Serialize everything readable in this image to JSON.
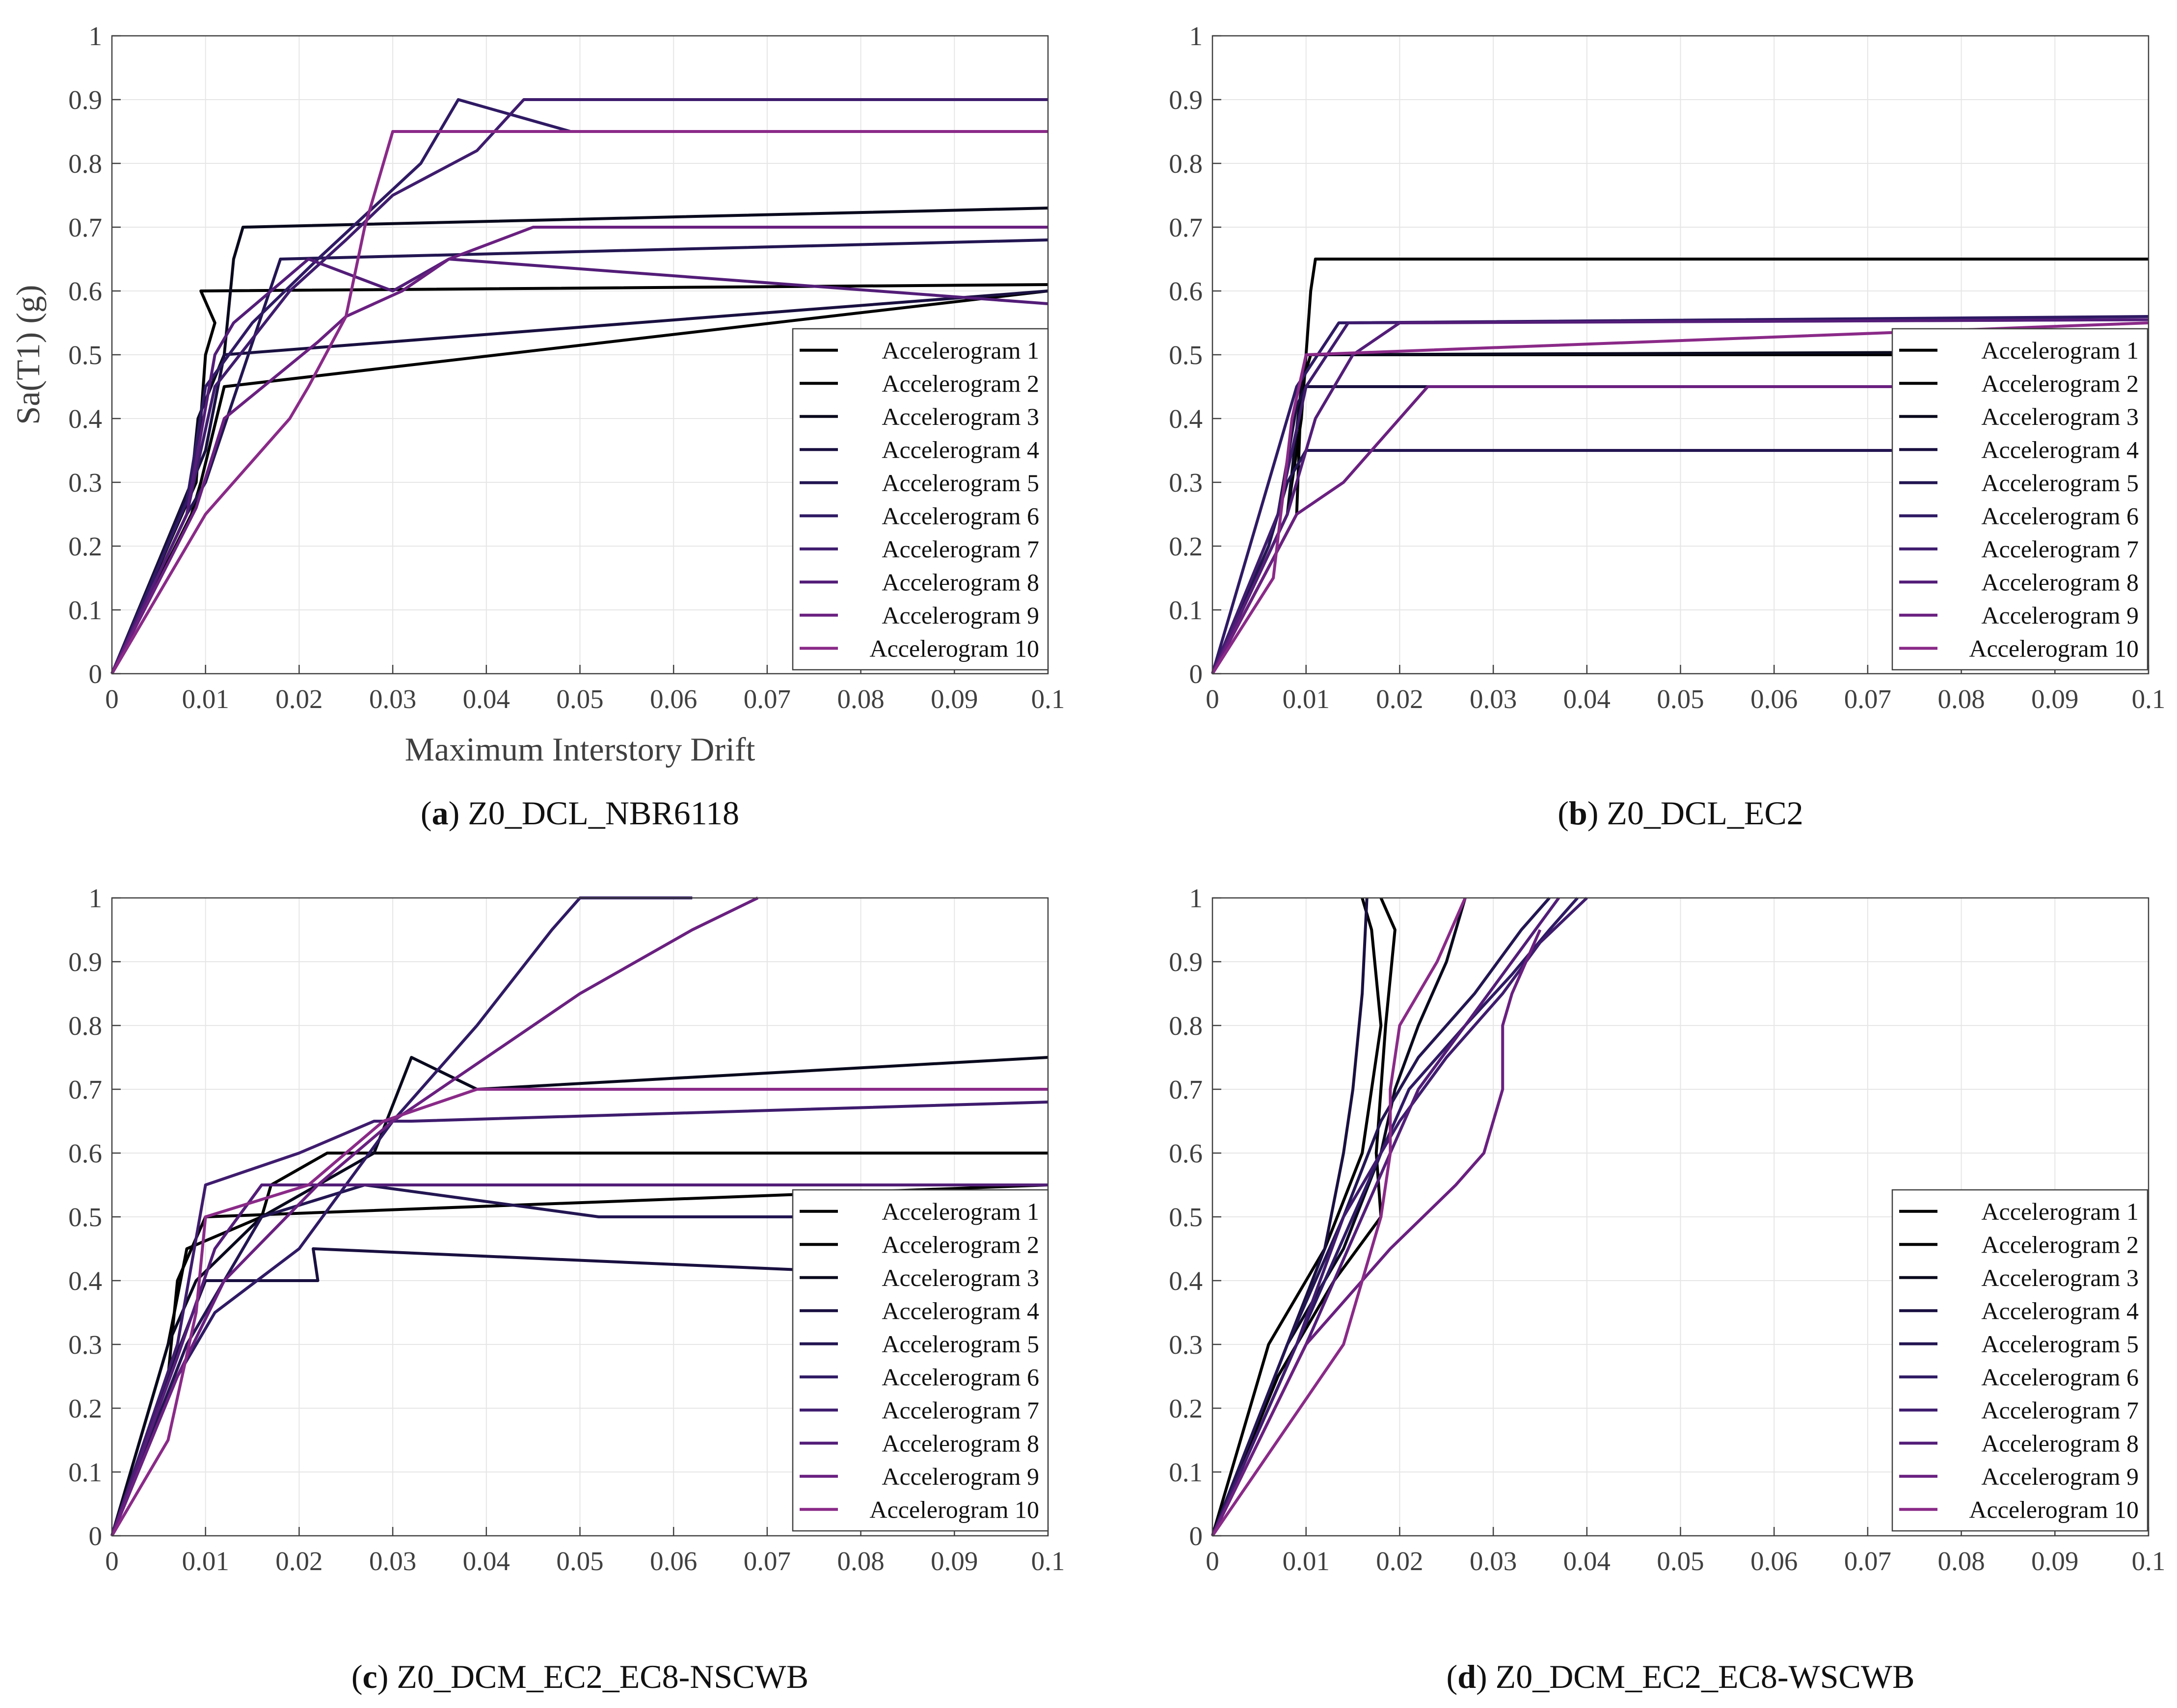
{
  "chart_data": [
    {
      "type": "line",
      "xlabel": "Maximum Interstory Drift",
      "ylabel": "Sa(T1) (g)",
      "xlim": [
        0,
        0.1
      ],
      "ylim": [
        0,
        1
      ],
      "xticks": [
        "0",
        "0.01",
        "0.02",
        "0.03",
        "0.04",
        "0.05",
        "0.06",
        "0.07",
        "0.08",
        "0.09",
        "0.1"
      ],
      "yticks": [
        "0",
        "0.1",
        "0.2",
        "0.3",
        "0.4",
        "0.5",
        "0.6",
        "0.7",
        "0.8",
        "0.9",
        "1"
      ],
      "grid": true,
      "legend_position": "bottom-right",
      "caption_letter": "a",
      "caption_text": "Z0_DCL_NBR6118",
      "series": [
        {
          "name": "Accelerogram 1",
          "color": "#000000",
          "x": [
            0,
            0.0085,
            0.0095,
            0.012,
            0.1
          ],
          "y": [
            0,
            0.25,
            0.3,
            0.45,
            0.6
          ]
        },
        {
          "name": "Accelerogram 2",
          "color": "#000000",
          "x": [
            0,
            0.009,
            0.01,
            0.011,
            0.0095,
            0.1
          ],
          "y": [
            0,
            0.3,
            0.5,
            0.55,
            0.6,
            0.61
          ]
        },
        {
          "name": "Accelerogram 3",
          "color": "#0a0a1e",
          "x": [
            0,
            0.0085,
            0.0092,
            0.012,
            0.013,
            0.014,
            0.1
          ],
          "y": [
            0,
            0.3,
            0.4,
            0.5,
            0.65,
            0.7,
            0.73
          ]
        },
        {
          "name": "Accelerogram 4",
          "color": "#1a1040",
          "x": [
            0,
            0.008,
            0.01,
            0.012,
            0.1
          ],
          "y": [
            0,
            0.28,
            0.35,
            0.5,
            0.6
          ]
        },
        {
          "name": "Accelerogram 5",
          "color": "#231652",
          "x": [
            0,
            0.008,
            0.01,
            0.018,
            0.1
          ],
          "y": [
            0,
            0.25,
            0.3,
            0.65,
            0.68
          ]
        },
        {
          "name": "Accelerogram 6",
          "color": "#2f1a64",
          "x": [
            0,
            0.008,
            0.01,
            0.015,
            0.022,
            0.033,
            0.037,
            0.049,
            0.1
          ],
          "y": [
            0,
            0.27,
            0.45,
            0.55,
            0.65,
            0.8,
            0.9,
            0.85,
            0.85
          ]
        },
        {
          "name": "Accelerogram 7",
          "color": "#3f1c6e",
          "x": [
            0,
            0.008,
            0.011,
            0.019,
            0.025,
            0.03,
            0.039,
            0.044,
            0.1
          ],
          "y": [
            0,
            0.25,
            0.45,
            0.6,
            0.68,
            0.75,
            0.82,
            0.9,
            0.9
          ]
        },
        {
          "name": "Accelerogram 8",
          "color": "#531d78",
          "x": [
            0,
            0.008,
            0.011,
            0.013,
            0.021,
            0.03,
            0.036,
            0.1
          ],
          "y": [
            0,
            0.25,
            0.5,
            0.55,
            0.65,
            0.6,
            0.65,
            0.58
          ]
        },
        {
          "name": "Accelerogram 9",
          "color": "#6a2080",
          "x": [
            0,
            0.009,
            0.012,
            0.022,
            0.025,
            0.031,
            0.036,
            0.045,
            0.1
          ],
          "y": [
            0,
            0.26,
            0.4,
            0.52,
            0.56,
            0.6,
            0.65,
            0.7,
            0.7
          ]
        },
        {
          "name": "Accelerogram 10",
          "color": "#8a2a88",
          "x": [
            0,
            0.01,
            0.019,
            0.021,
            0.025,
            0.027,
            0.03,
            0.1
          ],
          "y": [
            0,
            0.25,
            0.4,
            0.45,
            0.56,
            0.7,
            0.85,
            0.85
          ]
        }
      ]
    },
    {
      "type": "line",
      "xlabel": "",
      "ylabel": "",
      "xlim": [
        0,
        0.1
      ],
      "ylim": [
        0,
        1
      ],
      "xticks": [
        "0",
        "0.01",
        "0.02",
        "0.03",
        "0.04",
        "0.05",
        "0.06",
        "0.07",
        "0.08",
        "0.09",
        "0.1"
      ],
      "yticks": [
        "0",
        "0.1",
        "0.2",
        "0.3",
        "0.4",
        "0.5",
        "0.6",
        "0.7",
        "0.8",
        "0.9",
        "1"
      ],
      "grid": true,
      "legend_position": "right",
      "caption_letter": "b",
      "caption_text": "Z0_DCL_EC2",
      "series": [
        {
          "name": "Accelerogram 1",
          "color": "#000000",
          "x": [
            0,
            0.008,
            0.0095,
            0.0105,
            0.011,
            0.1
          ],
          "y": [
            0,
            0.25,
            0.4,
            0.6,
            0.65,
            0.65
          ]
        },
        {
          "name": "Accelerogram 2",
          "color": "#000000",
          "x": [
            0,
            0.009,
            0.0095,
            0.0105,
            0.1
          ],
          "y": [
            0,
            0.25,
            0.45,
            0.5,
            0.5
          ]
        },
        {
          "name": "Accelerogram 3",
          "color": "#0a0a1e",
          "x": [
            0,
            0.008,
            0.0095,
            0.01,
            0.1
          ],
          "y": [
            0,
            0.25,
            0.45,
            0.5,
            0.505
          ]
        },
        {
          "name": "Accelerogram 4",
          "color": "#1a1040",
          "x": [
            0,
            0.007,
            0.009,
            0.01,
            0.1
          ],
          "y": [
            0,
            0.25,
            0.42,
            0.45,
            0.45
          ]
        },
        {
          "name": "Accelerogram 5",
          "color": "#231652",
          "x": [
            0,
            0.006,
            0.008,
            0.01,
            0.1
          ],
          "y": [
            0,
            0.2,
            0.3,
            0.35,
            0.35
          ]
        },
        {
          "name": "Accelerogram 6",
          "color": "#2f1a64",
          "x": [
            0,
            0.006,
            0.009,
            0.0135,
            0.1
          ],
          "y": [
            0,
            0.3,
            0.45,
            0.55,
            0.56
          ]
        },
        {
          "name": "Accelerogram 7",
          "color": "#3f1c6e",
          "x": [
            0,
            0.007,
            0.01,
            0.0145,
            0.1
          ],
          "y": [
            0,
            0.25,
            0.45,
            0.55,
            0.555
          ]
        },
        {
          "name": "Accelerogram 8",
          "color": "#531d78",
          "x": [
            0,
            0.008,
            0.011,
            0.015,
            0.02,
            0.1
          ],
          "y": [
            0,
            0.25,
            0.4,
            0.5,
            0.55,
            0.555
          ]
        },
        {
          "name": "Accelerogram 9",
          "color": "#6a2080",
          "x": [
            0,
            0.009,
            0.014,
            0.02,
            0.023,
            0.1
          ],
          "y": [
            0,
            0.25,
            0.3,
            0.4,
            0.45,
            0.45
          ]
        },
        {
          "name": "Accelerogram 10",
          "color": "#8a2a88",
          "x": [
            0,
            0.0065,
            0.0085,
            0.01,
            0.1
          ],
          "y": [
            0,
            0.15,
            0.4,
            0.5,
            0.55
          ]
        }
      ]
    },
    {
      "type": "line",
      "xlabel": "",
      "ylabel": "",
      "xlim": [
        0,
        0.1
      ],
      "ylim": [
        0,
        1
      ],
      "xticks": [
        "0",
        "0.01",
        "0.02",
        "0.03",
        "0.04",
        "0.05",
        "0.06",
        "0.07",
        "0.08",
        "0.09",
        "0.1"
      ],
      "yticks": [
        "0",
        "0.1",
        "0.2",
        "0.3",
        "0.4",
        "0.5",
        "0.6",
        "0.7",
        "0.8",
        "0.9",
        "1"
      ],
      "grid": true,
      "legend_position": "bottom-right",
      "caption_letter": "c",
      "caption_text": "Z0_DCM_EC2_EC8-NSCWB",
      "series": [
        {
          "name": "Accelerogram 1",
          "color": "#000000",
          "x": [
            0,
            0.006,
            0.007,
            0.01,
            0.1
          ],
          "y": [
            0,
            0.25,
            0.4,
            0.5,
            0.55
          ]
        },
        {
          "name": "Accelerogram 2",
          "color": "#000000",
          "x": [
            0,
            0.006,
            0.008,
            0.016,
            0.017,
            0.023,
            0.029,
            0.1
          ],
          "y": [
            0,
            0.3,
            0.45,
            0.5,
            0.55,
            0.6,
            0.6,
            0.6
          ]
        },
        {
          "name": "Accelerogram 3",
          "color": "#0a0a1e",
          "x": [
            0,
            0.006,
            0.009,
            0.016,
            0.028,
            0.032,
            0.039,
            0.1
          ],
          "y": [
            0,
            0.3,
            0.4,
            0.5,
            0.6,
            0.75,
            0.7,
            0.75
          ]
        },
        {
          "name": "Accelerogram 4",
          "color": "#1a1040",
          "x": [
            0,
            0.006,
            0.01,
            0.022,
            0.0215,
            0.1
          ],
          "y": [
            0,
            0.25,
            0.4,
            0.4,
            0.45,
            0.4
          ]
        },
        {
          "name": "Accelerogram 5",
          "color": "#231652",
          "x": [
            0,
            0.008,
            0.016,
            0.027,
            0.052,
            0.1
          ],
          "y": [
            0,
            0.3,
            0.5,
            0.55,
            0.5,
            0.5
          ]
        },
        {
          "name": "Accelerogram 6",
          "color": "#2f1a64",
          "x": [
            0,
            0.007,
            0.011,
            0.02,
            0.03,
            0.039,
            0.047,
            0.05,
            0.062
          ],
          "y": [
            0,
            0.25,
            0.35,
            0.45,
            0.65,
            0.8,
            0.95,
            1.0,
            1.0
          ]
        },
        {
          "name": "Accelerogram 7",
          "color": "#3f1c6e",
          "x": [
            0,
            0.007,
            0.01,
            0.02,
            0.028,
            0.032,
            0.1
          ],
          "y": [
            0,
            0.3,
            0.55,
            0.6,
            0.65,
            0.65,
            0.68
          ]
        },
        {
          "name": "Accelerogram 8",
          "color": "#531d78",
          "x": [
            0,
            0.007,
            0.011,
            0.016,
            0.1
          ],
          "y": [
            0,
            0.28,
            0.45,
            0.55,
            0.55
          ]
        },
        {
          "name": "Accelerogram 9",
          "color": "#6a2080",
          "x": [
            0,
            0.007,
            0.012,
            0.022,
            0.03,
            0.04,
            0.05,
            0.062,
            0.069
          ],
          "y": [
            0,
            0.25,
            0.4,
            0.55,
            0.65,
            0.75,
            0.85,
            0.95,
            1.0
          ]
        },
        {
          "name": "Accelerogram 10",
          "color": "#8a2a88",
          "x": [
            0,
            0.006,
            0.009,
            0.01,
            0.021,
            0.029,
            0.039,
            0.1
          ],
          "y": [
            0,
            0.15,
            0.35,
            0.5,
            0.55,
            0.65,
            0.7,
            0.7
          ]
        }
      ]
    },
    {
      "type": "line",
      "xlabel": "",
      "ylabel": "",
      "xlim": [
        0,
        0.1
      ],
      "ylim": [
        0,
        1
      ],
      "xticks": [
        "0",
        "0.01",
        "0.02",
        "0.03",
        "0.04",
        "0.05",
        "0.06",
        "0.07",
        "0.08",
        "0.09",
        "0.1"
      ],
      "yticks": [
        "0",
        "0.1",
        "0.2",
        "0.3",
        "0.4",
        "0.5",
        "0.6",
        "0.7",
        "0.8",
        "0.9",
        "1"
      ],
      "grid": true,
      "legend_position": "bottom-right",
      "caption_letter": "d",
      "caption_text": "Z0_DCM_EC2_EC8-WSCWB",
      "series": [
        {
          "name": "Accelerogram 1",
          "color": "#000000",
          "x": [
            0,
            0.006,
            0.012,
            0.016,
            0.018,
            0.017,
            0.016
          ],
          "y": [
            0,
            0.3,
            0.45,
            0.6,
            0.8,
            0.95,
            1.0
          ]
        },
        {
          "name": "Accelerogram 2",
          "color": "#000000",
          "x": [
            0,
            0.007,
            0.013,
            0.018,
            0.0175,
            0.0185,
            0.0195,
            0.018
          ],
          "y": [
            0,
            0.25,
            0.4,
            0.5,
            0.6,
            0.8,
            0.95,
            1.0
          ]
        },
        {
          "name": "Accelerogram 3",
          "color": "#0a0a1e",
          "x": [
            0,
            0.008,
            0.014,
            0.018,
            0.0195,
            0.022,
            0.025,
            0.027
          ],
          "y": [
            0,
            0.3,
            0.45,
            0.6,
            0.7,
            0.8,
            0.9,
            1.0
          ]
        },
        {
          "name": "Accelerogram 4",
          "color": "#1a1040",
          "x": [
            0,
            0.008,
            0.012,
            0.014,
            0.015,
            0.016,
            0.0165
          ],
          "y": [
            0,
            0.3,
            0.45,
            0.6,
            0.7,
            0.85,
            1.0
          ]
        },
        {
          "name": "Accelerogram 5",
          "color": "#231652",
          "x": [
            0,
            0.008,
            0.014,
            0.018,
            0.022,
            0.028,
            0.033,
            0.036
          ],
          "y": [
            0,
            0.3,
            0.5,
            0.65,
            0.75,
            0.85,
            0.95,
            1.0
          ]
        },
        {
          "name": "Accelerogram 6",
          "color": "#2f1a64",
          "x": [
            0,
            0.009,
            0.015,
            0.021,
            0.027,
            0.032,
            0.036,
            0.039
          ],
          "y": [
            0,
            0.3,
            0.5,
            0.7,
            0.8,
            0.88,
            0.95,
            1.0
          ]
        },
        {
          "name": "Accelerogram 7",
          "color": "#3f1c6e",
          "x": [
            0,
            0.009,
            0.014,
            0.02,
            0.025,
            0.031,
            0.035,
            0.04
          ],
          "y": [
            0,
            0.3,
            0.5,
            0.65,
            0.75,
            0.85,
            0.93,
            1.0
          ]
        },
        {
          "name": "Accelerogram 8",
          "color": "#531d78",
          "x": [
            0,
            0.01,
            0.016,
            0.022,
            0.028,
            0.033,
            0.037
          ],
          "y": [
            0,
            0.3,
            0.5,
            0.7,
            0.82,
            0.92,
            1.0
          ]
        },
        {
          "name": "Accelerogram 9",
          "color": "#6a2080",
          "x": [
            0,
            0.01,
            0.019,
            0.026,
            0.029,
            0.031,
            0.031,
            0.032,
            0.035
          ],
          "y": [
            0,
            0.3,
            0.45,
            0.55,
            0.6,
            0.7,
            0.8,
            0.85,
            0.95
          ]
        },
        {
          "name": "Accelerogram 10",
          "color": "#8a2a88",
          "x": [
            0,
            0.007,
            0.014,
            0.018,
            0.019,
            0.019,
            0.02,
            0.024,
            0.027
          ],
          "y": [
            0,
            0.15,
            0.3,
            0.5,
            0.6,
            0.7,
            0.8,
            0.9,
            1.0
          ]
        }
      ]
    }
  ]
}
